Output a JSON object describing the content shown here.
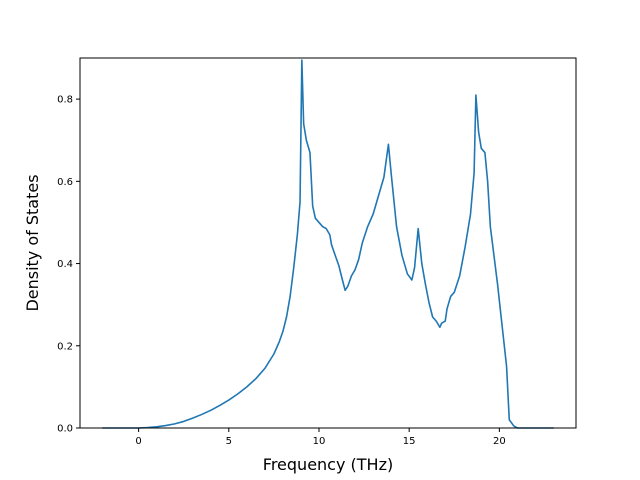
{
  "chart_data": {
    "type": "line",
    "title": "",
    "xlabel": "Frequency (THz)",
    "ylabel": "Density of States",
    "xlim": [
      -3.25,
      24.25
    ],
    "ylim": [
      0.0,
      0.9
    ],
    "xticks": [
      0,
      5,
      10,
      15,
      20
    ],
    "yticks": [
      0.0,
      0.2,
      0.4,
      0.6,
      0.8
    ],
    "xtick_labels": [
      "0",
      "5",
      "10",
      "15",
      "20"
    ],
    "ytick_labels": [
      "0.0",
      "0.2",
      "0.4",
      "0.6",
      "0.8"
    ],
    "grid": false,
    "color": "#1f77b4",
    "series": [
      {
        "x": [
          -2.0,
          -1.0,
          0.0,
          0.5,
          1.0,
          1.5,
          2.0,
          2.5,
          3.0,
          3.5,
          4.0,
          4.5,
          5.0,
          5.5,
          6.0,
          6.5,
          7.0,
          7.5,
          7.8,
          8.0,
          8.2,
          8.4,
          8.6,
          8.8,
          8.95,
          9.05,
          9.15,
          9.3,
          9.5,
          9.65,
          9.8,
          10.0,
          10.2,
          10.4,
          10.6,
          10.7,
          10.9,
          11.1,
          11.3,
          11.45,
          11.6,
          11.8,
          12.0,
          12.2,
          12.4,
          12.7,
          13.0,
          13.3,
          13.6,
          13.85,
          14.0,
          14.3,
          14.6,
          14.9,
          15.15,
          15.3,
          15.5,
          15.7,
          15.9,
          16.1,
          16.3,
          16.5,
          16.7,
          16.8,
          17.0,
          17.1,
          17.3,
          17.5,
          17.8,
          18.1,
          18.4,
          18.6,
          18.7,
          18.85,
          19.0,
          19.2,
          19.35,
          19.5,
          19.7,
          19.9,
          20.2,
          20.4,
          20.55,
          20.8,
          21.0,
          22.0,
          23.0
        ],
        "y": [
          0.0,
          0.0,
          0.0,
          0.001,
          0.003,
          0.006,
          0.01,
          0.016,
          0.024,
          0.033,
          0.043,
          0.055,
          0.068,
          0.083,
          0.1,
          0.12,
          0.145,
          0.18,
          0.21,
          0.235,
          0.27,
          0.32,
          0.39,
          0.47,
          0.55,
          0.895,
          0.74,
          0.7,
          0.67,
          0.54,
          0.51,
          0.5,
          0.49,
          0.485,
          0.47,
          0.445,
          0.42,
          0.395,
          0.36,
          0.335,
          0.345,
          0.37,
          0.385,
          0.41,
          0.45,
          0.49,
          0.52,
          0.565,
          0.61,
          0.69,
          0.62,
          0.49,
          0.42,
          0.375,
          0.36,
          0.39,
          0.485,
          0.4,
          0.35,
          0.305,
          0.27,
          0.26,
          0.245,
          0.255,
          0.26,
          0.29,
          0.32,
          0.33,
          0.37,
          0.44,
          0.52,
          0.62,
          0.81,
          0.72,
          0.68,
          0.67,
          0.6,
          0.49,
          0.42,
          0.35,
          0.23,
          0.15,
          0.02,
          0.005,
          0.0,
          0.0,
          0.0
        ]
      }
    ]
  }
}
